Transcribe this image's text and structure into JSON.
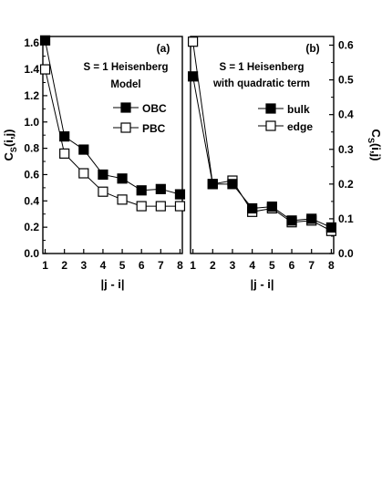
{
  "chart_data": [
    {
      "type": "line",
      "panel_label": "(a)",
      "annotation_lines": [
        "S = 1 Heisenberg",
        "Model"
      ],
      "xlabel": "|j - i|",
      "ylabel": "C",
      "ylabel_sub": "S",
      "ylabel_args": "(i,j)",
      "x": [
        1,
        2,
        3,
        4,
        5,
        6,
        7,
        8
      ],
      "xlim": [
        1,
        8
      ],
      "ylim": [
        0.0,
        1.65
      ],
      "yticks": [
        "0.0",
        "0.2",
        "0.4",
        "0.6",
        "0.8",
        "1.0",
        "1.2",
        "1.4",
        "1.6"
      ],
      "ytick_values": [
        0.0,
        0.2,
        0.4,
        0.6,
        0.8,
        1.0,
        1.2,
        1.4,
        1.6
      ],
      "xticks": [
        "1",
        "2",
        "3",
        "4",
        "5",
        "6",
        "7",
        "8"
      ],
      "y_axis_side": "left",
      "legend_position": "right-middle",
      "series": [
        {
          "name": "OBC",
          "marker": "filled-square",
          "values": [
            1.62,
            0.89,
            0.79,
            0.6,
            0.57,
            0.48,
            0.49,
            0.45
          ]
        },
        {
          "name": "PBC",
          "marker": "open-square",
          "values": [
            1.4,
            0.76,
            0.61,
            0.47,
            0.41,
            0.36,
            0.36,
            0.36
          ]
        }
      ]
    },
    {
      "type": "line",
      "panel_label": "(b)",
      "annotation_lines": [
        "S = 1 Heisenberg",
        "with quadratic term"
      ],
      "xlabel": "|j - i|",
      "ylabel": "C",
      "ylabel_sub": "S",
      "ylabel_args": "(i,j)",
      "x": [
        1,
        2,
        3,
        4,
        5,
        6,
        7,
        8
      ],
      "xlim": [
        1,
        8
      ],
      "ylim": [
        0.0,
        0.625
      ],
      "yticks": [
        "0.0",
        "0.1",
        "0.2",
        "0.3",
        "0.4",
        "0.5",
        "0.6"
      ],
      "ytick_values": [
        0.0,
        0.1,
        0.2,
        0.3,
        0.4,
        0.5,
        0.6
      ],
      "xticks": [
        "1",
        "2",
        "3",
        "4",
        "5",
        "6",
        "7",
        "8"
      ],
      "y_axis_side": "right",
      "legend_position": "right-middle",
      "series": [
        {
          "name": "bulk",
          "marker": "filled-square",
          "values": [
            0.51,
            0.2,
            0.2,
            0.13,
            0.135,
            0.095,
            0.1,
            0.075
          ]
        },
        {
          "name": "edge",
          "marker": "open-square",
          "values": [
            0.61,
            0.2,
            0.21,
            0.12,
            0.13,
            0.09,
            0.095,
            0.065
          ]
        }
      ]
    }
  ]
}
